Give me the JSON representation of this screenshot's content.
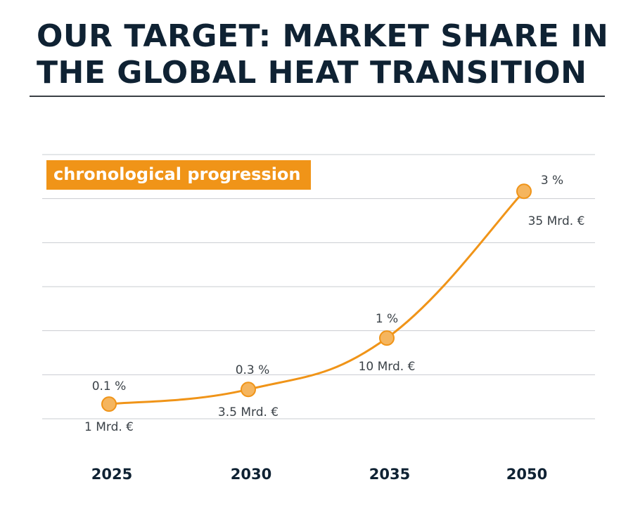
{
  "title_lines": [
    "OUR TARGET: MARKET SHARE IN",
    "THE GLOBAL HEAT TRANSITION"
  ],
  "badge": "chronological progression",
  "colors": {
    "accent": "#f09418",
    "marker_fill": "#f5b55e",
    "title": "#0f2233",
    "grid": "#c9ccd1"
  },
  "chart_data": {
    "type": "line",
    "title": "",
    "xlabel": "",
    "ylabel": "",
    "categories": [
      "2025",
      "2030",
      "2035",
      "2050"
    ],
    "series": [
      {
        "values": [
          0.1,
          0.3,
          1,
          3
        ],
        "labels": [
          "0.1 %",
          "0.3 %",
          "1 %",
          "3 %"
        ]
      }
    ],
    "secondary_labels": [
      "1 Mrd. €",
      "3.5 Mrd. €",
      "10 Mrd. €",
      "35 Mrd. €"
    ],
    "ylim": [
      -0.1,
      3.5
    ],
    "grid": true,
    "legend": "none"
  }
}
